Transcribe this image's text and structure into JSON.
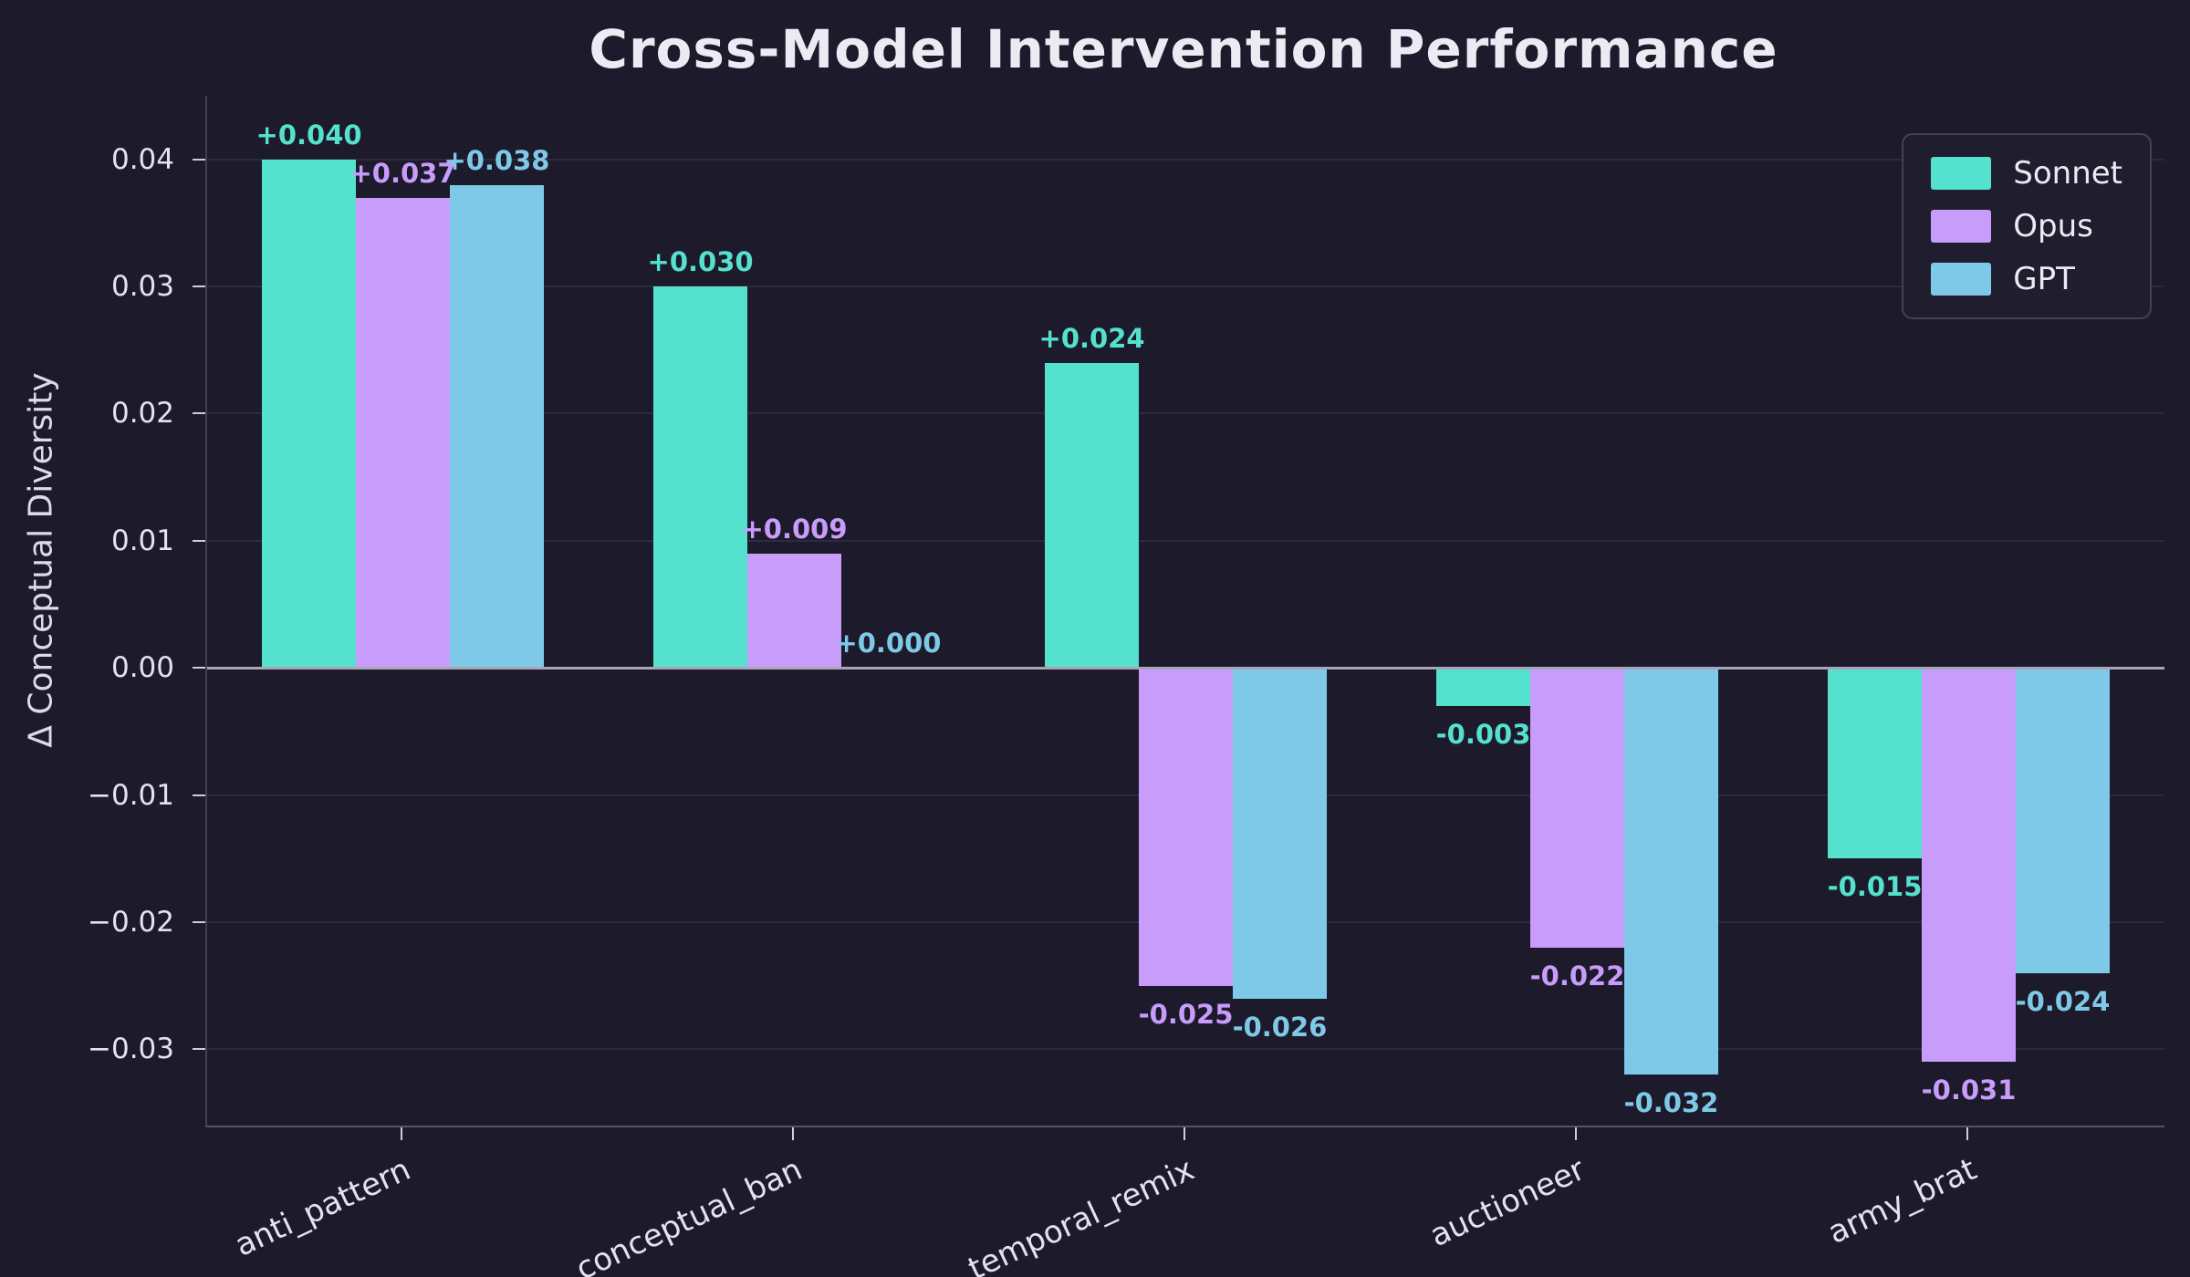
{
  "title": "Cross-Model Intervention Performance",
  "colors": {
    "background": "#1d1a2b",
    "text": "#eae8f2",
    "grid": "#2c2941",
    "zero_line": "#a8a5b8",
    "sonnet": "#54e1ce",
    "opus": "#c89cfa",
    "gpt": "#7fc9e8"
  },
  "legend": {
    "items": [
      {
        "label": "Sonnet",
        "color": "#54e1ce"
      },
      {
        "label": "Opus",
        "color": "#c89cfa"
      },
      {
        "label": "GPT",
        "color": "#7fc9e8"
      }
    ]
  },
  "chart_data": {
    "type": "bar",
    "title": "Cross-Model Intervention Performance",
    "xlabel": "",
    "ylabel": "Δ Conceptual Diversity",
    "categories": [
      "anti_pattern",
      "conceptual_ban",
      "temporal_remix",
      "auctioneer",
      "army_brat"
    ],
    "series": [
      {
        "name": "Sonnet",
        "color": "#54e1ce",
        "values": [
          0.04,
          0.03,
          0.024,
          -0.003,
          -0.015
        ],
        "labels": [
          "+0.040",
          "+0.030",
          "+0.024",
          "-0.003",
          "-0.015"
        ]
      },
      {
        "name": "Opus",
        "color": "#c89cfa",
        "values": [
          0.037,
          0.009,
          -0.025,
          -0.022,
          -0.031
        ],
        "labels": [
          "+0.037",
          "+0.009",
          "-0.025",
          "-0.022",
          "-0.031"
        ]
      },
      {
        "name": "GPT",
        "color": "#7fc9e8",
        "values": [
          0.038,
          0.0,
          -0.026,
          -0.032,
          -0.024
        ],
        "labels": [
          "+0.038",
          "+0.000",
          "-0.026",
          "-0.032",
          "-0.024"
        ]
      }
    ],
    "yticks": [
      0.04,
      0.03,
      0.02,
      0.01,
      0.0,
      -0.01,
      -0.02,
      -0.03
    ],
    "ytick_labels": [
      "0.04",
      "0.03",
      "0.02",
      "0.01",
      "0.00",
      "−0.01",
      "−0.02",
      "−0.03"
    ],
    "ylim": [
      -0.036,
      0.045
    ],
    "grid": true,
    "legend_position": "upper right"
  }
}
